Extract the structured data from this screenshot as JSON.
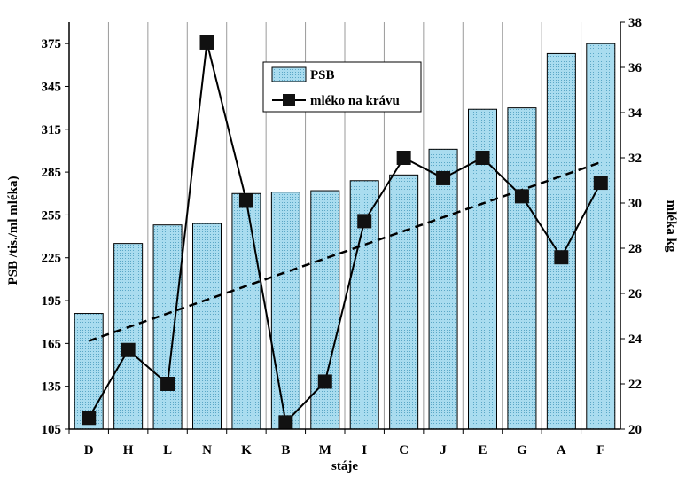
{
  "chart_data": {
    "type": "bar",
    "categories": [
      "D",
      "H",
      "L",
      "N",
      "K",
      "B",
      "M",
      "I",
      "C",
      "J",
      "E",
      "G",
      "A",
      "F"
    ],
    "series": [
      {
        "name": "PSB",
        "type": "bar",
        "axis": "left",
        "values": [
          186,
          235,
          248,
          249,
          270,
          271,
          272,
          279,
          283,
          301,
          329,
          330,
          368,
          375
        ]
      },
      {
        "name": "mléko na krávu",
        "type": "line",
        "axis": "right",
        "values": [
          20.5,
          23.5,
          22.0,
          37.1,
          30.1,
          20.3,
          22.1,
          29.2,
          32.0,
          31.1,
          32.0,
          30.3,
          27.6,
          30.9
        ]
      }
    ],
    "trendline": {
      "series": "mléko na krávu",
      "style": "dashed",
      "start": 23.9,
      "end": 31.8
    },
    "xlabel": "stáje",
    "ylabel": "PSB /tis./ml mléka)",
    "y2label": "mléka kg",
    "ylim": [
      105,
      390
    ],
    "y2lim": [
      20,
      38
    ],
    "yticks": [
      105,
      135,
      165,
      195,
      225,
      255,
      285,
      315,
      345,
      375
    ],
    "y2ticks": [
      20,
      22,
      24,
      26,
      28,
      30,
      32,
      34,
      36,
      38
    ],
    "grid": "vertical",
    "legend": "top-center",
    "colors": {
      "bar_fill": "#a9dcef",
      "bar_stroke": "#000000",
      "line": "#000000",
      "marker": "#111111",
      "grid": "#9a9a9a"
    }
  }
}
